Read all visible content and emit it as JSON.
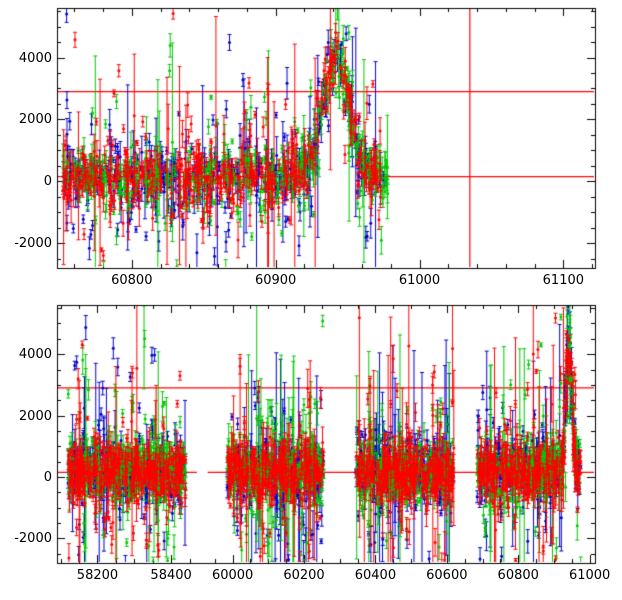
{
  "figure": {
    "description": "Two-panel photometric light curve plot (magnification vs time in MJD) with red, green and blue data points with error bars, a red model curve with a peak near MJD 60942, a red horizontal threshold line and a red vertical marker line.",
    "background": "#ffffff",
    "axis_color": "#000000",
    "model_color": "#ff0000"
  },
  "chart_data": [
    {
      "id": "zoom-panel",
      "type": "scatter",
      "title": "",
      "xlabel": "",
      "ylabel": "",
      "xlim": [
        60748,
        61122
      ],
      "ylim": [
        -2800,
        5600
      ],
      "grid": false,
      "legend": "none",
      "x_segments": [
        {
          "data": [
            60748,
            61122
          ],
          "frac": [
            0,
            1
          ]
        }
      ],
      "xticks": {
        "majors": [
          {
            "value": 60800,
            "label": "60800"
          },
          {
            "value": 60900,
            "label": "60900"
          },
          {
            "value": 61000,
            "label": "61000"
          },
          {
            "value": 61100,
            "label": "61100"
          }
        ],
        "minor_step": 20
      },
      "yticks": {
        "majors": [
          {
            "value": -2000,
            "label": "-2000"
          },
          {
            "value": 0,
            "label": "0"
          },
          {
            "value": 2000,
            "label": "2000"
          },
          {
            "value": 4000,
            "label": "4000"
          }
        ],
        "minor_step": 500
      },
      "series": [
        {
          "name": "blue-band",
          "color": "#0000cd"
        },
        {
          "name": "green-band",
          "color": "#00c800"
        },
        {
          "name": "red-band",
          "color": "#ff0000"
        }
      ],
      "clusters": [
        [
          60752,
          60978
        ]
      ],
      "points_per_day": 2.1,
      "model": {
        "shape": "gaussian_peak",
        "baseline": 150,
        "amplitude": 3950,
        "t0": 60942,
        "sigma": 8.5
      },
      "threshold_y": 2900,
      "vline_x": 61035,
      "noise": {
        "mixture": [
          {
            "p": 0.7,
            "sd": 420
          },
          {
            "p": 0.22,
            "sd": 1050
          },
          {
            "p": 0.08,
            "sd": 2400
          }
        ],
        "err_base": 60,
        "err_sigma": 260,
        "big_err_prob": 0.035,
        "big_err_min": 1200,
        "big_err_span": 2800
      },
      "seed": 11
    },
    {
      "id": "full-panel",
      "type": "scatter",
      "title": "",
      "xlabel": "",
      "ylabel": "",
      "xlim": [
        58090,
        61015
      ],
      "ylim": [
        -2800,
        5600
      ],
      "grid": false,
      "legend": "none",
      "axis_break": "between 58470 and 59930",
      "x_segments": [
        {
          "data": [
            58090,
            58470
          ],
          "frac": [
            0,
            0.26
          ]
        },
        {
          "data": [
            59930,
            61015
          ],
          "frac": [
            0.28,
            1
          ]
        }
      ],
      "xticks": {
        "majors": [
          {
            "value": 58200,
            "label": "58200"
          },
          {
            "value": 58400,
            "label": "58400"
          },
          {
            "value": 60000,
            "label": "60000"
          },
          {
            "value": 60200,
            "label": "60200"
          },
          {
            "value": 60400,
            "label": "60400"
          },
          {
            "value": 60600,
            "label": "60600"
          },
          {
            "value": 60800,
            "label": "60800"
          },
          {
            "value": 61000,
            "label": "61000"
          }
        ],
        "minor_step": 50
      },
      "yticks": {
        "majors": [
          {
            "value": -2000,
            "label": "-2000"
          },
          {
            "value": 0,
            "label": "0"
          },
          {
            "value": 2000,
            "label": "2000"
          },
          {
            "value": 4000,
            "label": "4000"
          }
        ],
        "minor_step": 500
      },
      "series": [
        {
          "name": "blue-band",
          "color": "#0000cd"
        },
        {
          "name": "green-band",
          "color": "#00c800"
        },
        {
          "name": "red-band",
          "color": "#ff0000"
        }
      ],
      "clusters": [
        [
          58120,
          58440
        ],
        [
          59985,
          60255
        ],
        [
          60345,
          60620
        ],
        [
          60685,
          60975
        ]
      ],
      "points_per_day": 1.1,
      "model": {
        "shape": "gaussian_peak",
        "baseline": 150,
        "amplitude": 3950,
        "t0": 60942,
        "sigma": 8.5
      },
      "threshold_y": 2900,
      "vline_x": null,
      "noise": {
        "mixture": [
          {
            "p": 0.7,
            "sd": 420
          },
          {
            "p": 0.22,
            "sd": 1050
          },
          {
            "p": 0.08,
            "sd": 2400
          }
        ],
        "err_base": 60,
        "err_sigma": 260,
        "big_err_prob": 0.035,
        "big_err_min": 1200,
        "big_err_span": 2800
      },
      "seed": 27
    }
  ]
}
